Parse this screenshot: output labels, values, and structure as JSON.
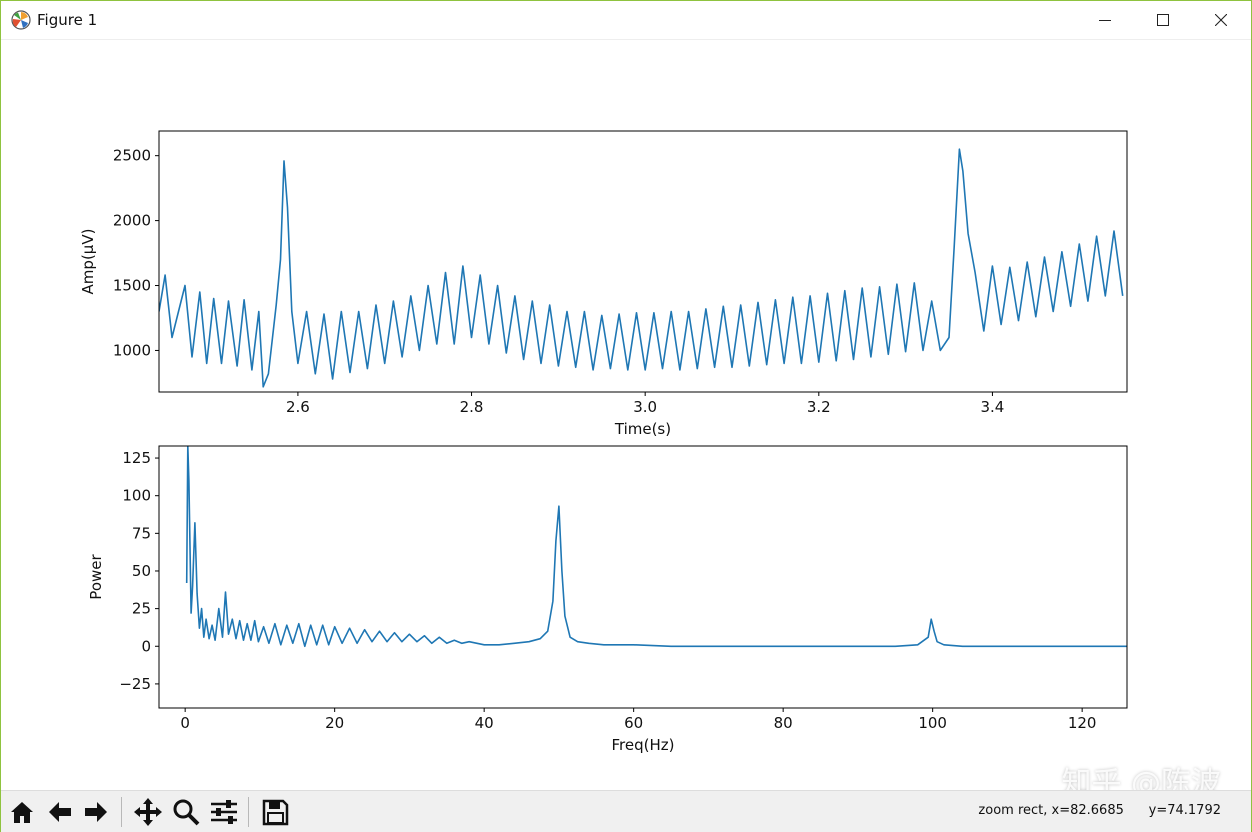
{
  "window": {
    "title": "Figure 1",
    "icon": "matplotlib-icon"
  },
  "controls": {
    "minimize": "minimize-icon",
    "maximize": "maximize-icon",
    "close": "close-icon"
  },
  "toolbar": {
    "buttons": [
      "home-icon",
      "back-icon",
      "forward-icon",
      "pan-icon",
      "zoom-icon",
      "configure-subplots-icon",
      "save-icon"
    ],
    "status": "zoom rect, x=82.6685      y=74.1792"
  },
  "watermark": "知乎 @陈波",
  "colors": {
    "line": "#1f77b4",
    "window_border": "#8fc33f",
    "toolbar_bg": "#f0f0f0"
  },
  "chart_data": [
    {
      "type": "line",
      "xlabel": "Time(s)",
      "ylabel": "Amp(μV)",
      "xlim": [
        2.44,
        3.555
      ],
      "ylim": [
        680,
        2690
      ],
      "xticks": [
        2.6,
        2.8,
        3.0,
        3.2,
        3.4
      ],
      "xtick_labels": [
        "2.6",
        "2.8",
        "3.0",
        "3.2",
        "3.4"
      ],
      "yticks": [
        1000,
        1500,
        2000,
        2500
      ],
      "ytick_labels": [
        "1000",
        "1500",
        "2000",
        "2500"
      ],
      "grid": false,
      "series": [
        {
          "values_description": "Rhythmic oscillation ~50 Hz between ~850 and ~1500 μV, with spikes",
          "x": [
            2.44,
            2.447,
            2.455,
            2.47,
            2.478,
            2.487,
            2.495,
            2.503,
            2.512,
            2.52,
            2.53,
            2.538,
            2.547,
            2.555,
            2.56,
            2.566,
            2.575,
            2.58,
            2.584,
            2.588,
            2.593,
            2.6,
            2.61,
            2.62,
            2.63,
            2.64,
            2.65,
            2.66,
            2.67,
            2.68,
            2.69,
            2.7,
            2.71,
            2.72,
            2.73,
            2.74,
            2.75,
            2.76,
            2.77,
            2.78,
            2.79,
            2.8,
            2.81,
            2.82,
            2.83,
            2.84,
            2.85,
            2.86,
            2.87,
            2.88,
            2.89,
            2.9,
            2.91,
            2.92,
            2.93,
            2.94,
            2.95,
            2.96,
            2.97,
            2.98,
            2.99,
            3.0,
            3.01,
            3.02,
            3.03,
            3.04,
            3.05,
            3.06,
            3.07,
            3.08,
            3.09,
            3.1,
            3.11,
            3.12,
            3.13,
            3.14,
            3.15,
            3.16,
            3.17,
            3.18,
            3.19,
            3.2,
            3.21,
            3.22,
            3.23,
            3.24,
            3.25,
            3.26,
            3.27,
            3.28,
            3.29,
            3.3,
            3.31,
            3.32,
            3.33,
            3.34,
            3.35,
            3.356,
            3.362,
            3.366,
            3.372,
            3.38,
            3.39,
            3.4,
            3.41,
            3.42,
            3.43,
            3.44,
            3.45,
            3.46,
            3.47,
            3.48,
            3.49,
            3.5,
            3.51,
            3.52,
            3.53,
            3.54,
            3.55
          ],
          "y": [
            1300,
            1580,
            1100,
            1500,
            950,
            1450,
            900,
            1400,
            900,
            1380,
            880,
            1390,
            850,
            1300,
            720,
            820,
            1350,
            1700,
            2460,
            2100,
            1300,
            900,
            1300,
            820,
            1280,
            780,
            1300,
            830,
            1300,
            860,
            1350,
            900,
            1380,
            950,
            1420,
            1000,
            1500,
            1050,
            1600,
            1050,
            1650,
            1100,
            1580,
            1050,
            1500,
            980,
            1420,
            930,
            1380,
            900,
            1350,
            880,
            1300,
            870,
            1300,
            850,
            1270,
            860,
            1280,
            850,
            1290,
            850,
            1290,
            860,
            1300,
            850,
            1300,
            860,
            1320,
            870,
            1340,
            870,
            1350,
            880,
            1370,
            890,
            1390,
            900,
            1410,
            900,
            1420,
            910,
            1440,
            920,
            1460,
            930,
            1480,
            950,
            1490,
            970,
            1510,
            990,
            1520,
            1000,
            1380,
            1000,
            1100,
            1800,
            2550,
            2380,
            1900,
            1600,
            1150,
            1650,
            1200,
            1640,
            1230,
            1680,
            1260,
            1720,
            1300,
            1760,
            1340,
            1820,
            1380,
            1880,
            1420,
            1920,
            1420
          ]
        }
      ]
    },
    {
      "type": "line",
      "xlabel": "Freq(Hz)",
      "ylabel": "Power",
      "xlim": [
        -3.5,
        126
      ],
      "ylim": [
        -41,
        133
      ],
      "xticks": [
        0,
        20,
        40,
        60,
        80,
        100,
        120
      ],
      "xtick_labels": [
        "0",
        "20",
        "40",
        "60",
        "80",
        "100",
        "120"
      ],
      "yticks": [
        -25,
        0,
        25,
        50,
        75,
        100,
        125
      ],
      "ytick_labels": [
        "−25",
        "0",
        "25",
        "50",
        "75",
        "100",
        "125"
      ],
      "grid": false,
      "series": [
        {
          "x": [
            0.2,
            0.35,
            0.5,
            0.8,
            1.0,
            1.3,
            1.6,
            1.9,
            2.2,
            2.5,
            2.8,
            3.2,
            3.6,
            4.0,
            4.5,
            5.0,
            5.4,
            5.8,
            6.3,
            6.8,
            7.3,
            7.8,
            8.3,
            8.8,
            9.3,
            9.8,
            10.5,
            11.2,
            12.0,
            12.8,
            13.6,
            14.4,
            15.2,
            16.0,
            16.8,
            17.6,
            18.4,
            19.2,
            20.0,
            21.0,
            22.0,
            23.0,
            24.0,
            25.0,
            26.0,
            27.0,
            28.0,
            29.0,
            30.0,
            31.0,
            32.0,
            33.0,
            34.0,
            35.0,
            36.0,
            37.0,
            38.0,
            40.0,
            42.0,
            44.0,
            46.0,
            47.5,
            48.5,
            49.2,
            49.6,
            50.0,
            50.4,
            50.8,
            51.5,
            52.5,
            54.0,
            56.0,
            60.0,
            65.0,
            70.0,
            75.0,
            80.0,
            85.0,
            90.0,
            95.0,
            98.0,
            99.4,
            99.8,
            100.2,
            100.6,
            101.5,
            104.0,
            110.0,
            115.0,
            120.0,
            126.0
          ],
          "y": [
            42,
            133,
            110,
            22,
            40,
            82,
            35,
            12,
            25,
            6,
            18,
            5,
            14,
            4,
            25,
            6,
            36,
            8,
            18,
            5,
            17,
            4,
            15,
            4,
            17,
            3,
            13,
            2,
            15,
            1,
            14,
            2,
            15,
            0,
            14,
            1,
            14,
            1,
            13,
            2,
            12,
            2,
            11,
            3,
            10,
            3,
            9,
            3,
            8,
            3,
            7,
            2,
            6,
            2,
            4,
            2,
            3,
            1,
            1,
            2,
            3,
            5,
            10,
            30,
            70,
            93,
            50,
            20,
            6,
            3,
            2,
            1,
            1,
            0,
            0,
            0,
            0,
            0,
            0,
            0,
            1,
            6,
            18,
            10,
            3,
            1,
            0,
            0,
            0,
            0,
            0
          ]
        }
      ]
    }
  ]
}
